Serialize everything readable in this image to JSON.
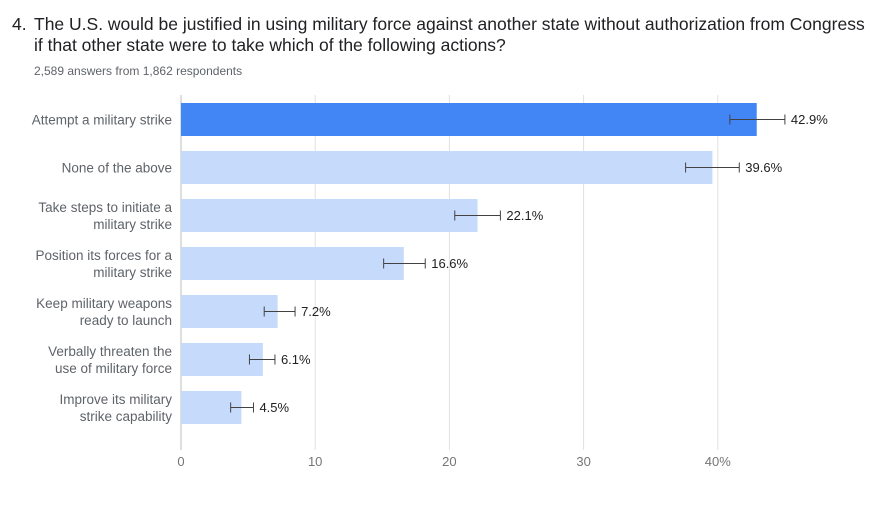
{
  "question": {
    "number": "4.",
    "text": "The U.S. would be justified in using military force against another state without authorization from Congress if that other state were to take which of the following actions?",
    "subtitle": "2,589 answers from 1,862 respondents"
  },
  "colors": {
    "highlight_bar": "#4285f4",
    "bar": "#c6dafc",
    "grid": "#e0e0e0",
    "axis": "#bdbdbd",
    "error_bar": "#424242"
  },
  "chart_data": {
    "type": "bar",
    "orientation": "horizontal",
    "categories": [
      "Attempt a military strike",
      "None of the above",
      "Take steps to initiate a military strike",
      "Position its forces for a military strike",
      "Keep military weapons ready to launch",
      "Verbally threaten the use of military force",
      "Improve its military strike capability"
    ],
    "category_lines": [
      [
        "Attempt a military strike"
      ],
      [
        "None of the above"
      ],
      [
        "Take steps to initiate a",
        "military strike"
      ],
      [
        "Position its forces for a",
        "military strike"
      ],
      [
        "Keep military weapons",
        "ready to launch"
      ],
      [
        "Verbally threaten the",
        "use of military force"
      ],
      [
        "Improve its military",
        "strike capability"
      ]
    ],
    "values": [
      42.9,
      39.6,
      22.1,
      16.6,
      7.2,
      6.1,
      4.5
    ],
    "value_labels": [
      "42.9%",
      "39.6%",
      "22.1%",
      "16.6%",
      "7.2%",
      "6.1%",
      "4.5%"
    ],
    "error_low": [
      40.9,
      37.6,
      20.4,
      15.1,
      6.2,
      5.1,
      3.7
    ],
    "error_high": [
      45.0,
      41.6,
      23.8,
      18.2,
      8.5,
      7.0,
      5.4
    ],
    "highlight_index": 0,
    "xlim": [
      0,
      45
    ],
    "xticks": [
      0,
      10,
      20,
      30,
      40
    ],
    "xtick_labels": [
      "0",
      "10",
      "20",
      "30",
      "40%"
    ],
    "grid": true
  }
}
